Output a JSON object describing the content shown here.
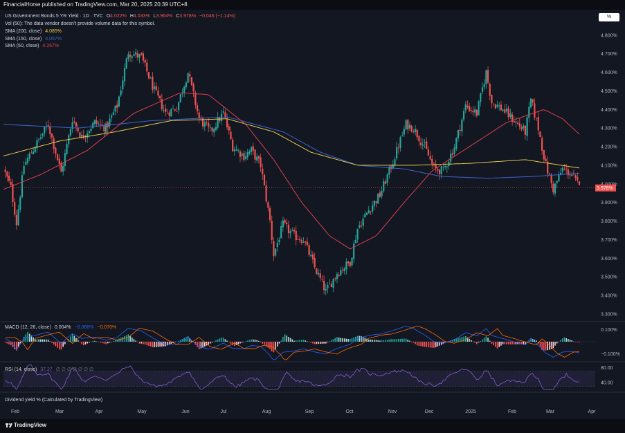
{
  "header": {
    "published_text": "FinancialHorse published on TradingView.com, Mar 20, 2025 20:39 UTC+8"
  },
  "unit_button": "%",
  "legend": {
    "title": "US Government Bonds 5 YR Yield · 1D · TVC",
    "o_label": "O",
    "o_value": "4.022%",
    "h_label": "H",
    "h_value": "4.033%",
    "l_label": "L",
    "l_value": "3.964%",
    "c_label": "C",
    "c_value": "3.978%",
    "change": "−0.046 (−1.14%)",
    "vol_text": "Vol (50): The data vendor doesn't provide volume data for this symbol.",
    "sma200_label": "SMA (200, close)",
    "sma200_value": "4.085%",
    "sma150_label": "SMA (150, close)",
    "sma150_value": "4.057%",
    "sma50_label": "SMA (50, close)",
    "sma50_value": "4.267%"
  },
  "macd_legend": {
    "label": "MACD (12, 26, close)",
    "v1": "0.004%",
    "v2": "−0.066%",
    "v3": "−0.070%"
  },
  "rsi_legend": {
    "label": "RSI (14, close)",
    "value": "37.27",
    "extra": "∅ ∅ ∅ ∅ ∅ ∅ ∅"
  },
  "dividend_legend": "Dividend yield % (Calculated by TradingView)",
  "footer": {
    "brand": "TradingView"
  },
  "colors": {
    "background": "#131722",
    "up": "#26a69a",
    "down": "#ef5350",
    "sma200": "#e6c84a",
    "sma150": "#3a66d0",
    "sma50": "#d9404a",
    "macd": "#2962ff",
    "signal": "#ff6d00",
    "rsi": "#7e57c2"
  },
  "chart_data": {
    "type": "candlestick",
    "price_axis": {
      "ticks": [
        "4.800%",
        "4.700%",
        "4.600%",
        "4.500%",
        "4.400%",
        "4.300%",
        "4.200%",
        "4.100%",
        "4.000%",
        "3.900%",
        "3.800%",
        "3.700%",
        "3.600%",
        "3.500%",
        "3.400%",
        "3.300%"
      ],
      "range": [
        3.27,
        4.84
      ],
      "last_price_label": "3.978%"
    },
    "time_axis": {
      "labels": [
        "Feb",
        "Mar",
        "Apr",
        "May",
        "Jun",
        "Jul",
        "Aug",
        "Sep",
        "Oct",
        "Nov",
        "Dec",
        "2025",
        "Feb",
        "Mar",
        "Apr"
      ]
    },
    "price_anchors": [
      {
        "d": 0,
        "y": 4.08
      },
      {
        "d": 8,
        "y": 3.98
      },
      {
        "d": 14,
        "y": 3.79
      },
      {
        "d": 22,
        "y": 4.1
      },
      {
        "d": 36,
        "y": 4.22
      },
      {
        "d": 48,
        "y": 4.32
      },
      {
        "d": 62,
        "y": 4.06
      },
      {
        "d": 74,
        "y": 4.35
      },
      {
        "d": 84,
        "y": 4.25
      },
      {
        "d": 98,
        "y": 4.33
      },
      {
        "d": 110,
        "y": 4.3
      },
      {
        "d": 122,
        "y": 4.42
      },
      {
        "d": 134,
        "y": 4.71
      },
      {
        "d": 148,
        "y": 4.68
      },
      {
        "d": 162,
        "y": 4.5
      },
      {
        "d": 174,
        "y": 4.38
      },
      {
        "d": 186,
        "y": 4.41
      },
      {
        "d": 198,
        "y": 4.6
      },
      {
        "d": 210,
        "y": 4.35
      },
      {
        "d": 222,
        "y": 4.28
      },
      {
        "d": 236,
        "y": 4.38
      },
      {
        "d": 246,
        "y": 4.2
      },
      {
        "d": 258,
        "y": 4.15
      },
      {
        "d": 266,
        "y": 4.18
      },
      {
        "d": 276,
        "y": 4.1
      },
      {
        "d": 286,
        "y": 3.8
      },
      {
        "d": 290,
        "y": 3.62
      },
      {
        "d": 300,
        "y": 3.78
      },
      {
        "d": 312,
        "y": 3.72
      },
      {
        "d": 322,
        "y": 3.7
      },
      {
        "d": 334,
        "y": 3.55
      },
      {
        "d": 346,
        "y": 3.42
      },
      {
        "d": 358,
        "y": 3.52
      },
      {
        "d": 372,
        "y": 3.58
      },
      {
        "d": 380,
        "y": 3.76
      },
      {
        "d": 392,
        "y": 3.86
      },
      {
        "d": 404,
        "y": 3.94
      },
      {
        "d": 418,
        "y": 4.12
      },
      {
        "d": 432,
        "y": 4.32
      },
      {
        "d": 440,
        "y": 4.3
      },
      {
        "d": 452,
        "y": 4.2
      },
      {
        "d": 462,
        "y": 4.08
      },
      {
        "d": 472,
        "y": 4.07
      },
      {
        "d": 484,
        "y": 4.2
      },
      {
        "d": 496,
        "y": 4.42
      },
      {
        "d": 508,
        "y": 4.38
      },
      {
        "d": 518,
        "y": 4.6
      },
      {
        "d": 524,
        "y": 4.44
      },
      {
        "d": 536,
        "y": 4.4
      },
      {
        "d": 550,
        "y": 4.33
      },
      {
        "d": 560,
        "y": 4.28
      },
      {
        "d": 566,
        "y": 4.45
      },
      {
        "d": 574,
        "y": 4.3
      },
      {
        "d": 582,
        "y": 4.1
      },
      {
        "d": 590,
        "y": 3.97
      },
      {
        "d": 600,
        "y": 4.08
      },
      {
        "d": 610,
        "y": 4.05
      },
      {
        "d": 618,
        "y": 3.98
      }
    ],
    "sma200_anchors": [
      {
        "d": 0,
        "y": 4.15
      },
      {
        "d": 60,
        "y": 4.23
      },
      {
        "d": 120,
        "y": 4.28
      },
      {
        "d": 180,
        "y": 4.34
      },
      {
        "d": 240,
        "y": 4.35
      },
      {
        "d": 290,
        "y": 4.28
      },
      {
        "d": 330,
        "y": 4.17
      },
      {
        "d": 380,
        "y": 4.1
      },
      {
        "d": 440,
        "y": 4.1
      },
      {
        "d": 500,
        "y": 4.11
      },
      {
        "d": 560,
        "y": 4.13
      },
      {
        "d": 618,
        "y": 4.085
      }
    ],
    "sma150_anchors": [
      {
        "d": 0,
        "y": 4.32
      },
      {
        "d": 80,
        "y": 4.3
      },
      {
        "d": 160,
        "y": 4.34
      },
      {
        "d": 240,
        "y": 4.36
      },
      {
        "d": 300,
        "y": 4.28
      },
      {
        "d": 340,
        "y": 4.17
      },
      {
        "d": 380,
        "y": 4.1
      },
      {
        "d": 430,
        "y": 4.08
      },
      {
        "d": 470,
        "y": 4.04
      },
      {
        "d": 520,
        "y": 4.03
      },
      {
        "d": 570,
        "y": 4.04
      },
      {
        "d": 618,
        "y": 4.057
      }
    ],
    "sma50_anchors": [
      {
        "d": 0,
        "y": 3.97
      },
      {
        "d": 40,
        "y": 4.05
      },
      {
        "d": 90,
        "y": 4.18
      },
      {
        "d": 140,
        "y": 4.38
      },
      {
        "d": 190,
        "y": 4.49
      },
      {
        "d": 220,
        "y": 4.48
      },
      {
        "d": 260,
        "y": 4.32
      },
      {
        "d": 290,
        "y": 4.13
      },
      {
        "d": 320,
        "y": 3.9
      },
      {
        "d": 350,
        "y": 3.72
      },
      {
        "d": 372,
        "y": 3.65
      },
      {
        "d": 400,
        "y": 3.72
      },
      {
        "d": 430,
        "y": 3.9
      },
      {
        "d": 460,
        "y": 4.07
      },
      {
        "d": 500,
        "y": 4.2
      },
      {
        "d": 540,
        "y": 4.33
      },
      {
        "d": 580,
        "y": 4.4
      },
      {
        "d": 600,
        "y": 4.35
      },
      {
        "d": 618,
        "y": 4.267
      }
    ],
    "macd": {
      "axis_ticks": [
        "0.100%",
        "−0.100%"
      ],
      "range": [
        -0.15,
        0.15
      ]
    },
    "rsi": {
      "axis_ticks": [
        "80.00",
        "40.00"
      ],
      "range": [
        20,
        90
      ],
      "band": [
        30,
        70
      ]
    }
  }
}
